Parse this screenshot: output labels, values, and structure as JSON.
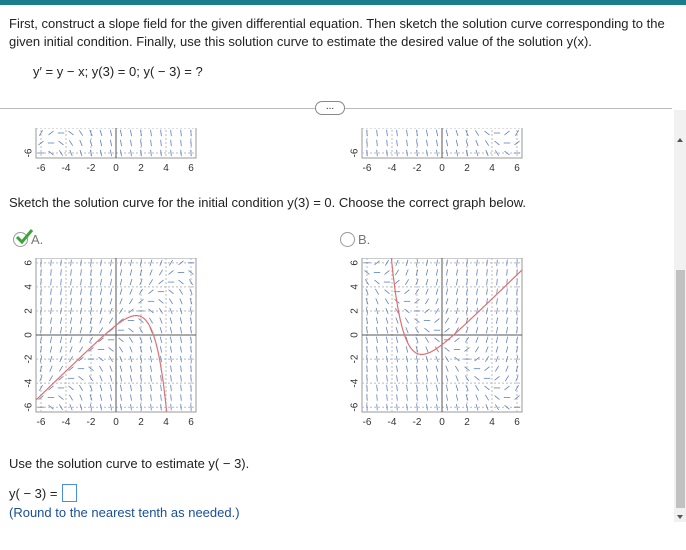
{
  "question": {
    "line1": "First, construct a slope field for the given differential equation. Then sketch the solution curve corresponding to the",
    "line2": "given initial condition. Finally, use this solution curve to estimate the desired value of the solution y(x).",
    "equation": "y′ = y − x; y(3) = 0; y( − 3) = ?"
  },
  "more_button": "...",
  "graph_axes": {
    "x_ticks": [
      "-6",
      "-4",
      "-2",
      "0",
      "2",
      "4",
      "6"
    ],
    "y_ticks": [
      "6",
      "4",
      "2",
      "0",
      "-2",
      "-4",
      "-6"
    ]
  },
  "prompt": "Sketch the solution curve for the initial condition y(3) = 0. Choose the correct graph below.",
  "options": [
    {
      "label": "A."
    },
    {
      "label": "B."
    }
  ],
  "estimate": {
    "instruction": "Use the solution curve to estimate y( − 3).",
    "answer_label": "y( − 3) =",
    "note": "(Round to the nearest tenth as needed.)"
  }
}
